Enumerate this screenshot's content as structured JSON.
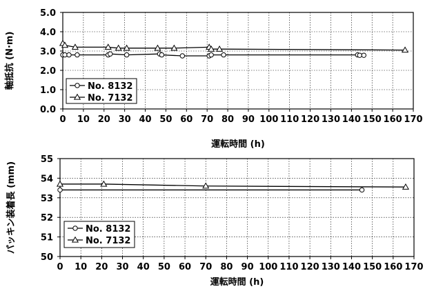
{
  "chart_data": [
    {
      "type": "line",
      "title": "",
      "xlabel": "運転時間 (h)",
      "ylabel": "軸抵抗 (N·m)",
      "xlim": [
        0,
        170
      ],
      "ylim": [
        0,
        5
      ],
      "x_ticks": [
        "0",
        "10",
        "20",
        "30",
        "40",
        "50",
        "60",
        "70",
        "80",
        "90",
        "100",
        "110",
        "120",
        "130",
        "140",
        "150",
        "160",
        "170"
      ],
      "y_ticks": [
        "0.0",
        "1.0",
        "2.0",
        "3.0",
        "4.0",
        "5.0"
      ],
      "grid": true,
      "legend_position": "bottom-left",
      "series": [
        {
          "name": "No. 8132",
          "marker": "circle",
          "points": [
            [
              0,
              2.8
            ],
            [
              1,
              2.8
            ],
            [
              3,
              2.8
            ],
            [
              7,
              2.8
            ],
            [
              22,
              2.8
            ],
            [
              23,
              2.85
            ],
            [
              31,
              2.8
            ],
            [
              47,
              2.85
            ],
            [
              48,
              2.8
            ],
            [
              58,
              2.75
            ],
            [
              71,
              2.75
            ],
            [
              72,
              2.8
            ],
            [
              78,
              2.8
            ],
            [
              143,
              2.8
            ],
            [
              144,
              2.78
            ],
            [
              146,
              2.78
            ]
          ]
        },
        {
          "name": "No. 7132",
          "marker": "triangle",
          "points": [
            [
              0,
              3.4
            ],
            [
              1,
              3.3
            ],
            [
              6,
              3.2
            ],
            [
              22,
              3.2
            ],
            [
              27,
              3.15
            ],
            [
              31,
              3.15
            ],
            [
              46,
              3.15
            ],
            [
              54,
              3.15
            ],
            [
              71,
              3.2
            ],
            [
              72,
              3.1
            ],
            [
              76,
              3.1
            ],
            [
              166,
              3.05
            ]
          ]
        }
      ]
    },
    {
      "type": "line",
      "title": "",
      "xlabel": "運転時間 (h)",
      "ylabel": "パッキン装着長 (mm)",
      "xlim": [
        0,
        170
      ],
      "ylim": [
        50,
        55
      ],
      "x_ticks": [
        "0",
        "10",
        "20",
        "30",
        "40",
        "50",
        "60",
        "70",
        "80",
        "90",
        "100",
        "110",
        "120",
        "130",
        "140",
        "150",
        "160",
        "170"
      ],
      "y_ticks": [
        "50",
        "51",
        "52",
        "53",
        "54",
        "55"
      ],
      "grid": true,
      "legend_position": "bottom-left",
      "series": [
        {
          "name": "No. 8132",
          "marker": "circle",
          "points": [
            [
              0,
              53.4
            ],
            [
              145,
              53.4
            ]
          ]
        },
        {
          "name": "No. 7132",
          "marker": "triangle",
          "points": [
            [
              0,
              53.7
            ],
            [
              21,
              53.7
            ],
            [
              70,
              53.6
            ],
            [
              166,
              53.55
            ]
          ]
        }
      ]
    }
  ]
}
